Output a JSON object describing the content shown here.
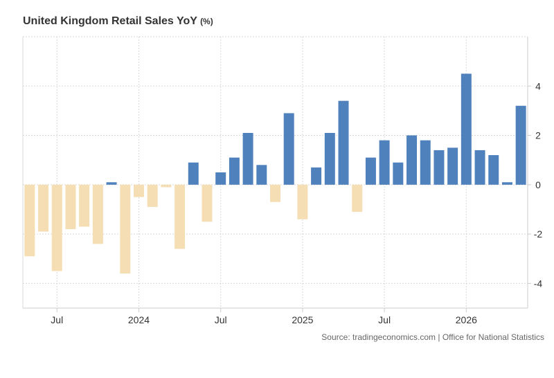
{
  "title": "United Kingdom Retail Sales YoY",
  "unit": "(%)",
  "source": "Source: tradingeconomics.com | Office for National Statistics",
  "colors": {
    "positive": "#4f81bd",
    "negative": "#f5deb3",
    "grid": "#d9d9d9",
    "axis": "#cccccc",
    "text": "#333333"
  },
  "chart_data": {
    "type": "bar",
    "ylim": [
      -5,
      6
    ],
    "y_ticks": [
      -4,
      -2,
      0,
      2,
      4
    ],
    "grid": true,
    "x_tick_labels": [
      {
        "label": "Jul",
        "index": 2
      },
      {
        "label": "2024",
        "index": 8
      },
      {
        "label": "Jul",
        "index": 14
      },
      {
        "label": "2025",
        "index": 20
      },
      {
        "label": "Jul",
        "index": 26
      },
      {
        "label": "2026",
        "index": 32
      }
    ],
    "values": [
      -2.9,
      -1.9,
      -3.5,
      -1.8,
      -1.7,
      -2.4,
      0.1,
      -3.6,
      -0.5,
      -0.9,
      -0.1,
      -2.6,
      0.9,
      -1.5,
      0.5,
      1.1,
      2.1,
      0.8,
      -0.7,
      2.9,
      -1.4,
      0.7,
      2.1,
      3.4,
      -1.1,
      1.1,
      1.8,
      0.9,
      2.0,
      1.8,
      1.4,
      1.5,
      4.5,
      1.4,
      1.2,
      0.1,
      3.2
    ]
  }
}
